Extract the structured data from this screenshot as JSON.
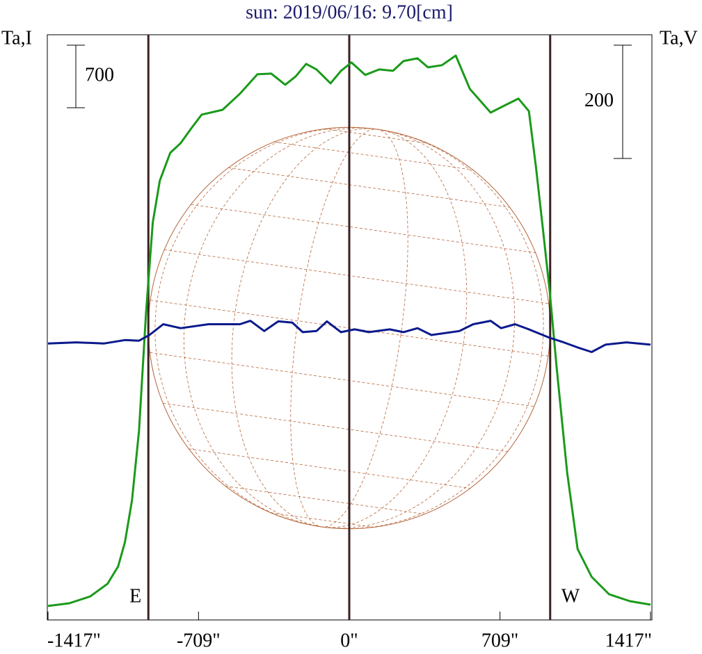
{
  "chart_data": {
    "type": "line",
    "title": "sun: 2019/06/16: 9.70[cm]",
    "y_label": "Ta,I",
    "y2_label": "Ta,V",
    "xlim": [
      -1417,
      1417
    ],
    "xticks": [
      {
        "value": -1417,
        "label": "-1417\""
      },
      {
        "value": -709,
        "label": "-709\""
      },
      {
        "value": 0,
        "label": "0\""
      },
      {
        "value": 709,
        "label": "709\""
      },
      {
        "value": 1417,
        "label": "1417\""
      }
    ],
    "ylim": [
      0,
      6550
    ],
    "y2lim": [
      -488,
      545
    ],
    "scale_bar_y": 700,
    "scale_bar_y2": 200,
    "limb_lines": [
      -945,
      0,
      945
    ],
    "limb_labels": [
      "E",
      "W"
    ],
    "series": [
      {
        "name": "I",
        "color": "#1a9a1a",
        "x": [
          -1417,
          -1317,
          -1218,
          -1137,
          -1087,
          -1055,
          -1022,
          -989,
          -956,
          -924,
          -891,
          -842,
          -793,
          -744,
          -694,
          -596,
          -514,
          -432,
          -367,
          -301,
          -252,
          -203,
          -154,
          -88,
          -39,
          10,
          75,
          141,
          206,
          255,
          321,
          370,
          436,
          501,
          567,
          665,
          730,
          796,
          845,
          878,
          911,
          943,
          976,
          1025,
          1074,
          1140,
          1222,
          1320,
          1417
        ],
        "values": [
          156,
          187,
          264,
          405,
          599,
          871,
          1338,
          2116,
          3439,
          4450,
          4917,
          5228,
          5337,
          5500,
          5656,
          5710,
          5890,
          6107,
          6115,
          5991,
          6084,
          6224,
          6162,
          6006,
          6146,
          6240,
          6100,
          6162,
          6146,
          6255,
          6286,
          6185,
          6209,
          6317,
          5944,
          5679,
          5757,
          5835,
          5695,
          5073,
          4372,
          3672,
          2816,
          1649,
          794,
          482,
          288,
          210,
          171
        ]
      },
      {
        "name": "V",
        "color": "#0a1a8c",
        "axis": "y2",
        "x": [
          -1417,
          -1284,
          -1153,
          -1055,
          -989,
          -940,
          -875,
          -793,
          -662,
          -514,
          -465,
          -400,
          -334,
          -268,
          -219,
          -154,
          -105,
          -39,
          26,
          92,
          190,
          255,
          321,
          386,
          518,
          583,
          665,
          714,
          780,
          845,
          943,
          1009,
          1074,
          1140,
          1205,
          1304,
          1417
        ],
        "values": [
          0,
          2,
          0,
          6,
          5,
          15,
          34,
          27,
          34,
          34,
          40,
          22,
          39,
          37,
          20,
          22,
          39,
          20,
          25,
          20,
          25,
          20,
          27,
          15,
          22,
          34,
          40,
          27,
          34,
          25,
          10,
          2,
          -7,
          -15,
          -2,
          2,
          -2
        ]
      }
    ]
  }
}
